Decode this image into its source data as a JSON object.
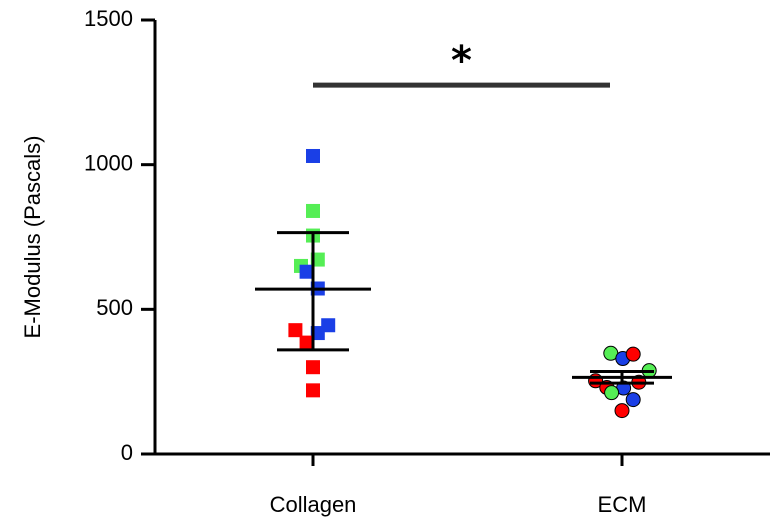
{
  "chart_data": {
    "type": "scatter",
    "ylabel": "E-Modulus (Pascals)",
    "ylim": [
      0,
      1500
    ],
    "yticks": [
      0,
      500,
      1000,
      1500
    ],
    "categories": [
      "Collagen",
      "ECM"
    ],
    "colors": {
      "red": "#ff0000",
      "green": "#55ee55",
      "blue": "#1a3fe6"
    },
    "groups": [
      {
        "category": "Collagen",
        "marker": "square",
        "mean": 570,
        "sd_upper": 765,
        "sd_lower": 360,
        "points": [
          {
            "offset": 0.0,
            "y": 1030,
            "color": "blue"
          },
          {
            "offset": 0.0,
            "y": 840,
            "color": "green"
          },
          {
            "offset": 0.0,
            "y": 755,
            "color": "green"
          },
          {
            "offset": 0.06,
            "y": 672,
            "color": "green"
          },
          {
            "offset": -0.15,
            "y": 650,
            "color": "green"
          },
          {
            "offset": -0.08,
            "y": 630,
            "color": "blue"
          },
          {
            "offset": 0.06,
            "y": 572,
            "color": "blue"
          },
          {
            "offset": 0.19,
            "y": 445,
            "color": "blue"
          },
          {
            "offset": 0.06,
            "y": 418,
            "color": "blue"
          },
          {
            "offset": -0.22,
            "y": 428,
            "color": "red"
          },
          {
            "offset": -0.08,
            "y": 385,
            "color": "red"
          },
          {
            "offset": 0.0,
            "y": 300,
            "color": "red"
          },
          {
            "offset": 0.0,
            "y": 220,
            "color": "red"
          }
        ]
      },
      {
        "category": "ECM",
        "marker": "circle",
        "mean": 265,
        "sd_upper": 285,
        "sd_lower": 245,
        "points": [
          {
            "offset": -0.14,
            "y": 348,
            "color": "green"
          },
          {
            "offset": 0.01,
            "y": 330,
            "color": "blue"
          },
          {
            "offset": 0.14,
            "y": 345,
            "color": "red"
          },
          {
            "offset": 0.34,
            "y": 288,
            "color": "green"
          },
          {
            "offset": -0.33,
            "y": 253,
            "color": "red"
          },
          {
            "offset": -0.19,
            "y": 230,
            "color": "red"
          },
          {
            "offset": 0.02,
            "y": 228,
            "color": "blue"
          },
          {
            "offset": 0.21,
            "y": 248,
            "color": "red"
          },
          {
            "offset": -0.13,
            "y": 212,
            "color": "green"
          },
          {
            "offset": 0.14,
            "y": 188,
            "color": "blue"
          },
          {
            "offset": 0.0,
            "y": 150,
            "color": "red"
          }
        ]
      }
    ],
    "significance": {
      "label": "*",
      "y": 1275
    }
  }
}
